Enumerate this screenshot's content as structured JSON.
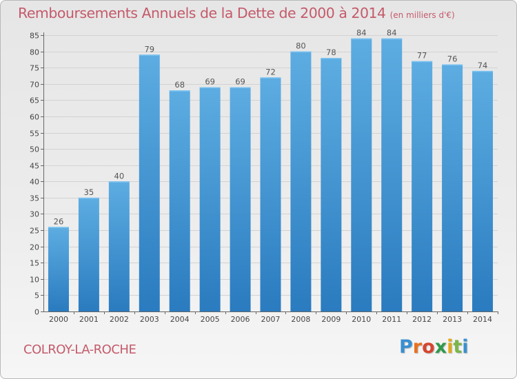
{
  "header": {
    "title": "Remboursements Annuels de la Dette de 2000 à 2014",
    "unit": "(en milliers d'€)"
  },
  "footer": {
    "commune": "COLROY-LA-ROCHE",
    "logo_letters": [
      "P",
      "r",
      "o",
      "x",
      "i",
      "t",
      "i"
    ]
  },
  "colors": {
    "title": "#c45a6a",
    "bar_light": "#5dade2",
    "bar_dark": "#2a7bbf",
    "grid": "#d2d2d2",
    "logo": [
      "#3a8fd0",
      "#e8711f",
      "#d6452f",
      "#2f9a4a",
      "#e0a81a",
      "#7ab648",
      "#3a8fd0"
    ]
  },
  "chart_data": {
    "type": "bar",
    "title": "Remboursements Annuels de la Dette de 2000 à 2014",
    "subtitle": "(en milliers d'€)",
    "categories": [
      "2000",
      "2001",
      "2002",
      "2003",
      "2004",
      "2005",
      "2006",
      "2007",
      "2008",
      "2009",
      "2010",
      "2011",
      "2012",
      "2013",
      "2014"
    ],
    "values": [
      26,
      35,
      40,
      79,
      68,
      69,
      69,
      72,
      80,
      78,
      84,
      84,
      77,
      76,
      74
    ],
    "ylim": [
      0,
      85
    ],
    "yticks": [
      0,
      5,
      10,
      15,
      20,
      25,
      30,
      35,
      40,
      45,
      50,
      55,
      60,
      65,
      70,
      75,
      80,
      85
    ],
    "grid": true,
    "data_labels": true,
    "legend": false
  }
}
